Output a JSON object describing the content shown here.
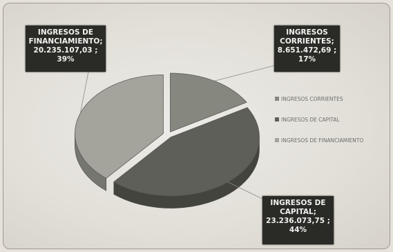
{
  "chart_data": {
    "type": "pie",
    "style": "3d-exploded",
    "categories": [
      "INGRESOS CORRIENTES",
      "INGRESOS DE CAPITAL",
      "INGRESOS DE FINANCIAMIENTO"
    ],
    "values": [
      8651472.69,
      23236073.75,
      20235107.03
    ],
    "percentages": [
      17,
      44,
      39
    ],
    "colors": [
      "#86877f",
      "#5e5f58",
      "#a4a49d"
    ],
    "legend_position": "right",
    "labels": [
      {
        "lines": [
          "INGRESOS",
          "CORRIENTES;",
          "8.651.472,69 ;",
          "17%"
        ]
      },
      {
        "lines": [
          "INGRESOS DE",
          "CAPITAL;",
          "23.236.073,75 ;",
          "44%"
        ]
      },
      {
        "lines": [
          "INGRESOS DE",
          "FINANCIAMIENTO;",
          "20.235.107,03 ;",
          "39%"
        ]
      }
    ]
  }
}
